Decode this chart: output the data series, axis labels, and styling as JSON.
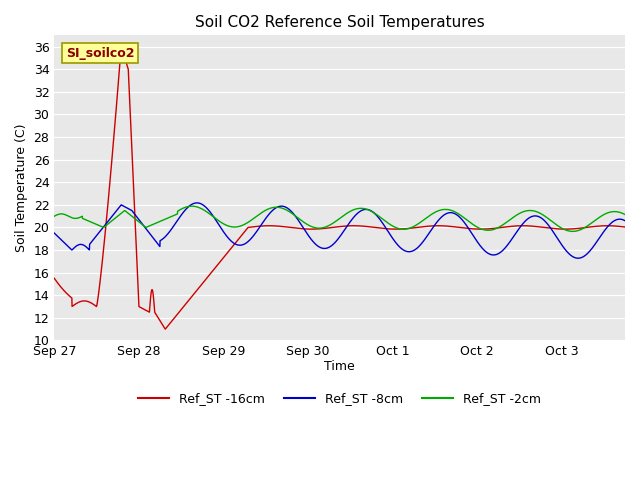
{
  "title": "Soil CO2 Reference Soil Temperatures",
  "ylabel": "Soil Temperature (C)",
  "xlabel": "Time",
  "ylim": [
    10,
    37
  ],
  "yticks": [
    10,
    12,
    14,
    16,
    18,
    20,
    22,
    24,
    26,
    28,
    30,
    32,
    34,
    36
  ],
  "site_label": "SI_soilco2",
  "fig_bg": "#ffffff",
  "plot_bg": "#e8e8e8",
  "line_colors": {
    "red": "#cc0000",
    "blue": "#0000cc",
    "green": "#00aa00"
  },
  "legend": [
    "Ref_ST -16cm",
    "Ref_ST -8cm",
    "Ref_ST -2cm"
  ],
  "x_tick_labels": [
    "Sep 27",
    "Sep 28",
    "Sep 29",
    "Sep 30",
    "Oct 1",
    "Oct 2",
    "Oct 3"
  ],
  "x_tick_positions": [
    0,
    24,
    48,
    72,
    96,
    120,
    144
  ]
}
